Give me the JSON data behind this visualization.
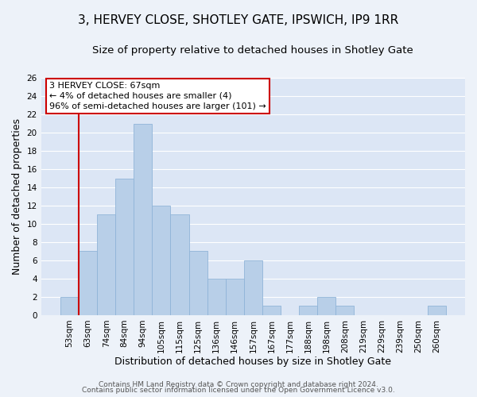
{
  "title": "3, HERVEY CLOSE, SHOTLEY GATE, IPSWICH, IP9 1RR",
  "subtitle": "Size of property relative to detached houses in Shotley Gate",
  "xlabel": "Distribution of detached houses by size in Shotley Gate",
  "ylabel": "Number of detached properties",
  "bar_labels": [
    "53sqm",
    "63sqm",
    "74sqm",
    "84sqm",
    "94sqm",
    "105sqm",
    "115sqm",
    "125sqm",
    "136sqm",
    "146sqm",
    "157sqm",
    "167sqm",
    "177sqm",
    "188sqm",
    "198sqm",
    "208sqm",
    "219sqm",
    "229sqm",
    "239sqm",
    "250sqm",
    "260sqm"
  ],
  "bar_values": [
    2,
    7,
    11,
    15,
    21,
    12,
    11,
    7,
    4,
    4,
    6,
    1,
    0,
    1,
    2,
    1,
    0,
    0,
    0,
    0,
    1
  ],
  "bar_color": "#b8cfe8",
  "bar_edge_color": "#90b4d8",
  "ylim": [
    0,
    26
  ],
  "yticks": [
    0,
    2,
    4,
    6,
    8,
    10,
    12,
    14,
    16,
    18,
    20,
    22,
    24,
    26
  ],
  "vline_color": "#cc0000",
  "annotation_lines": [
    "3 HERVEY CLOSE: 67sqm",
    "← 4% of detached houses are smaller (4)",
    "96% of semi-detached houses are larger (101) →"
  ],
  "annotation_box_color": "#ffffff",
  "annotation_box_edge": "#cc0000",
  "footer1": "Contains HM Land Registry data © Crown copyright and database right 2024.",
  "footer2": "Contains public sector information licensed under the Open Government Licence v3.0.",
  "bg_color": "#edf2f9",
  "plot_bg_color": "#dce6f5",
  "grid_color": "#ffffff",
  "title_fontsize": 11,
  "subtitle_fontsize": 9.5,
  "axis_label_fontsize": 9,
  "tick_fontsize": 7.5,
  "annotation_fontsize": 8,
  "footer_fontsize": 6.5
}
